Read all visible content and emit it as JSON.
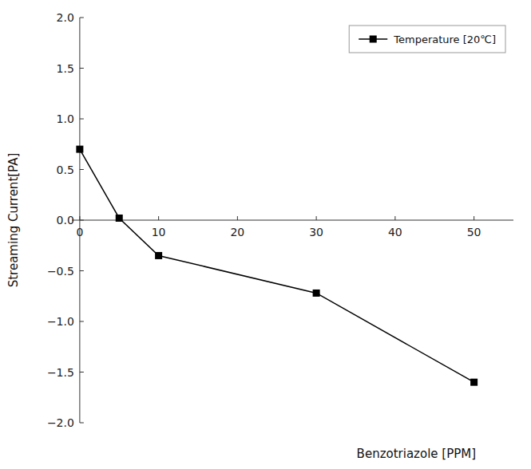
{
  "chart_data": {
    "type": "line",
    "xlabel": "Benzotriazole [PPM]",
    "ylabel": "Streaming Current[PA]",
    "x": [
      0,
      5,
      10,
      30,
      50
    ],
    "series": [
      {
        "name": "Temperature [20℃]",
        "color": "#000000",
        "marker": "square",
        "line_style": "solid",
        "values": [
          0.7,
          0.02,
          -0.35,
          -0.72,
          -1.6
        ]
      }
    ],
    "xlim": [
      -1,
      55
    ],
    "ylim": [
      -2.0,
      2.0
    ],
    "xticks": [
      0,
      10,
      20,
      30,
      40,
      50
    ],
    "yticks": [
      {
        "value": -2.0,
        "label": "−2.0"
      },
      {
        "value": -1.5,
        "label": "−1.5"
      },
      {
        "value": -1.0,
        "label": "−1.0"
      },
      {
        "value": -0.5,
        "label": "−0.5"
      },
      {
        "value": 0.0,
        "label": "0.0"
      },
      {
        "value": 0.5,
        "label": "0.5"
      },
      {
        "value": 1.0,
        "label": "1.0"
      },
      {
        "value": 1.5,
        "label": "1.5"
      },
      {
        "value": 2.0,
        "label": "2.0"
      }
    ],
    "grid": false,
    "legend": "upper right"
  }
}
